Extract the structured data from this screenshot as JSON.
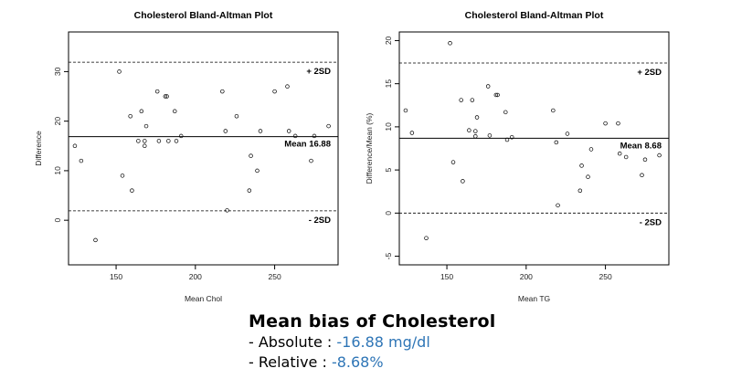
{
  "charts": [
    {
      "type": "scatter",
      "title": "Cholesterol Bland-Altman Plot",
      "xlabel": "Mean Chol",
      "ylabel": "Difference",
      "xlim": [
        120,
        290
      ],
      "ylim": [
        -9,
        38
      ],
      "xticks": [
        150,
        200,
        250
      ],
      "yticks": [
        0,
        10,
        20,
        30
      ],
      "grid": false,
      "mean_line": 16.88,
      "upper_line": 31.9,
      "lower_line": 1.9,
      "mean_label": "Mean 16.88",
      "upper_label": "+ 2SD",
      "lower_label": "- 2SD",
      "points": [
        [
          124,
          15
        ],
        [
          128,
          12
        ],
        [
          137,
          -4
        ],
        [
          152,
          30
        ],
        [
          154,
          9
        ],
        [
          159,
          21
        ],
        [
          160,
          6
        ],
        [
          164,
          16
        ],
        [
          166,
          22
        ],
        [
          168,
          16
        ],
        [
          168,
          15
        ],
        [
          169,
          19
        ],
        [
          176,
          26
        ],
        [
          177,
          16
        ],
        [
          181,
          25
        ],
        [
          182,
          25
        ],
        [
          183,
          16
        ],
        [
          187,
          22
        ],
        [
          188,
          16
        ],
        [
          191,
          17
        ],
        [
          217,
          26
        ],
        [
          219,
          18
        ],
        [
          220,
          2
        ],
        [
          226,
          21
        ],
        [
          234,
          6
        ],
        [
          235,
          13
        ],
        [
          239,
          10
        ],
        [
          241,
          18
        ],
        [
          250,
          26
        ],
        [
          258,
          27
        ],
        [
          259,
          18
        ],
        [
          263,
          17
        ],
        [
          273,
          12
        ],
        [
          275,
          17
        ],
        [
          284,
          19
        ]
      ]
    },
    {
      "type": "scatter",
      "title": "Cholesterol Bland-Altman Plot",
      "xlabel": "Mean TG",
      "ylabel": "Difference/Mean (%)",
      "xlim": [
        120,
        290
      ],
      "ylim": [
        -6,
        21
      ],
      "xticks": [
        150,
        200,
        250
      ],
      "yticks": [
        -5,
        0,
        5,
        10,
        15,
        20
      ],
      "grid": false,
      "mean_line": 8.68,
      "upper_line": 17.4,
      "lower_line": 0,
      "mean_label": "Mean 8.68",
      "upper_label": "+ 2SD",
      "lower_label": "- 2SD",
      "points": [
        [
          124,
          11.9
        ],
        [
          128,
          9.3
        ],
        [
          137,
          -2.9
        ],
        [
          152,
          19.7
        ],
        [
          154,
          5.9
        ],
        [
          159,
          13.1
        ],
        [
          160,
          3.7
        ],
        [
          164,
          9.6
        ],
        [
          166,
          13.1
        ],
        [
          168,
          9.5
        ],
        [
          168,
          8.9
        ],
        [
          169,
          11.1
        ],
        [
          176,
          14.7
        ],
        [
          177,
          9.0
        ],
        [
          181,
          13.7
        ],
        [
          182,
          13.7
        ],
        [
          187,
          11.7
        ],
        [
          188,
          8.5
        ],
        [
          191,
          8.8
        ],
        [
          217,
          11.9
        ],
        [
          219,
          8.2
        ],
        [
          220,
          0.9
        ],
        [
          226,
          9.2
        ],
        [
          234,
          2.6
        ],
        [
          235,
          5.5
        ],
        [
          239,
          4.2
        ],
        [
          241,
          7.4
        ],
        [
          250,
          10.4
        ],
        [
          258,
          10.4
        ],
        [
          259,
          6.9
        ],
        [
          263,
          6.5
        ],
        [
          273,
          4.4
        ],
        [
          275,
          6.2
        ],
        [
          284,
          6.7
        ]
      ]
    }
  ],
  "summary": {
    "heading": "Mean bias of Cholesterol",
    "absolute_prefix": "-  Absolute : ",
    "absolute_value": "-16.88 mg/dl",
    "relative_prefix": "-  Relative : ",
    "relative_value": "-8.68%"
  }
}
